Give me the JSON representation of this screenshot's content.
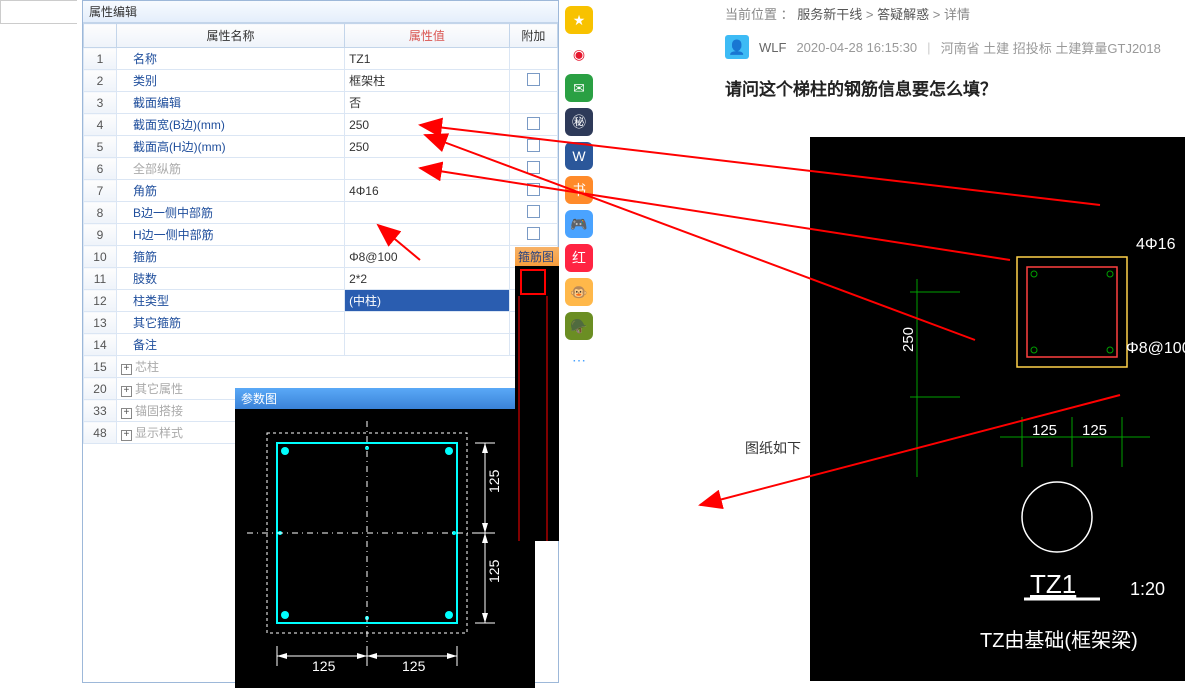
{
  "search": {
    "placeholder": ""
  },
  "panel": {
    "title": "属性编辑",
    "headers": {
      "name": "属性名称",
      "value": "属性值",
      "extra": "附加"
    },
    "rows": [
      {
        "n": "1",
        "name": "名称",
        "val": "TZ1",
        "chk": false,
        "gray": false
      },
      {
        "n": "2",
        "name": "类别",
        "val": "框架柱",
        "chk": true,
        "gray": false
      },
      {
        "n": "3",
        "name": "截面编辑",
        "val": "否",
        "chk": false,
        "gray": false
      },
      {
        "n": "4",
        "name": "截面宽(B边)(mm)",
        "val": "250",
        "chk": true,
        "gray": false
      },
      {
        "n": "5",
        "name": "截面高(H边)(mm)",
        "val": "250",
        "chk": true,
        "gray": false
      },
      {
        "n": "6",
        "name": "全部纵筋",
        "val": "",
        "chk": true,
        "gray": true
      },
      {
        "n": "7",
        "name": "角筋",
        "val": "4Φ16",
        "chk": true,
        "gray": false
      },
      {
        "n": "8",
        "name": "B边一侧中部筋",
        "val": "",
        "chk": true,
        "gray": false
      },
      {
        "n": "9",
        "name": "H边一侧中部筋",
        "val": "",
        "chk": true,
        "gray": false
      },
      {
        "n": "10",
        "name": "箍筋",
        "val": "Φ8@100",
        "chk": true,
        "gray": false
      },
      {
        "n": "11",
        "name": "肢数",
        "val": "2*2",
        "chk": false,
        "gray": false
      },
      {
        "n": "12",
        "name": "柱类型",
        "val": "(中柱)",
        "chk": true,
        "gray": false,
        "sel": true
      },
      {
        "n": "13",
        "name": "其它箍筋",
        "val": "",
        "chk": false,
        "gray": false
      },
      {
        "n": "14",
        "name": "备注",
        "val": "",
        "chk": true,
        "gray": false
      }
    ],
    "groups": [
      {
        "n": "15",
        "label": "芯柱"
      },
      {
        "n": "20",
        "label": "其它属性"
      },
      {
        "n": "33",
        "label": "锚固搭接"
      },
      {
        "n": "48",
        "label": "显示样式"
      }
    ]
  },
  "param_panel": {
    "title": "参数图",
    "dim": "125"
  },
  "stirrup_panel": {
    "title": "箍筋图"
  },
  "breadcrumb": {
    "prefix": "当前位置 ：",
    "a": "服务新干线",
    "b": "答疑解惑",
    "c": "详情"
  },
  "post": {
    "user": "WLF",
    "time": "2020-04-28 16:15:30",
    "tags": "河南省  土建  招投标  土建算量GTJ2018",
    "title": "请问这个梯柱的钢筋信息要怎么填？",
    "caption": "图纸如下"
  },
  "cad": {
    "rebar": "4Φ16",
    "stirrup": "Φ8@100",
    "h": "250",
    "d1": "125",
    "d2": "125",
    "name": "TZ1",
    "scale": "1:20",
    "note": "TZ由基础(框架梁)"
  },
  "arrow_color": "#ff0000",
  "side_icons": [
    {
      "name": "qzone-icon",
      "bg": "#f8c200",
      "glyph": "★"
    },
    {
      "name": "weibo-icon",
      "bg": "#ffffff",
      "glyph": "◉",
      "fg": "#e6162d"
    },
    {
      "name": "mail-icon",
      "bg": "#2aa043",
      "glyph": "✉"
    },
    {
      "name": "globe-icon",
      "bg": "#2e3a59",
      "glyph": "㊙"
    },
    {
      "name": "word-icon",
      "bg": "#2b579a",
      "glyph": "W"
    },
    {
      "name": "novel-icon",
      "bg": "#ff8a2a",
      "glyph": "书"
    },
    {
      "name": "game1-icon",
      "bg": "#4aa3ff",
      "glyph": "🎮"
    },
    {
      "name": "red-icon",
      "bg": "#ff2442",
      "glyph": "红"
    },
    {
      "name": "game2-icon",
      "bg": "#ffb84a",
      "glyph": "🐵"
    },
    {
      "name": "game3-icon",
      "bg": "#6b8e23",
      "glyph": "🪖"
    },
    {
      "name": "more-icon",
      "bg": "#ffffff",
      "glyph": "⋯",
      "fg": "#4aa3ff"
    }
  ]
}
